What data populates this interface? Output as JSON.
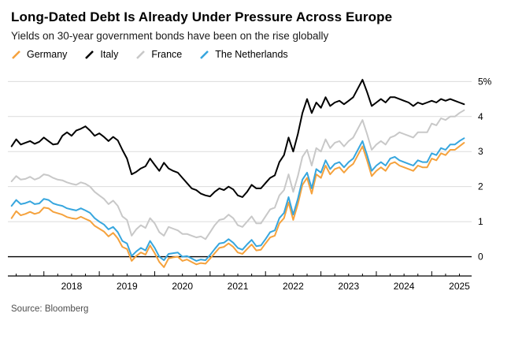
{
  "chart_data": {
    "type": "line",
    "title": "Long-Dated Debt Is Already Under Pressure Across Europe",
    "subtitle": "Yields on 30-year government bonds have been on the rise globally",
    "source": "Source: Bloomberg",
    "legend_position": "top",
    "grid": true,
    "grid_color": "#dcdcdc",
    "zero_line_color": "#000000",
    "axis_color": "#000000",
    "x_start": 2017.4167,
    "x_step": 0.083333,
    "xlim": [
      2017.35,
      2025.72
    ],
    "ylim": [
      -0.55,
      5.3
    ],
    "y_ticks": [
      0,
      1,
      2,
      3,
      4,
      5
    ],
    "y_tick_labels": [
      "0",
      "1",
      "2",
      "3",
      "4",
      "5%"
    ],
    "x_ticks": [
      2018,
      2019,
      2020,
      2021,
      2022,
      2023,
      2024,
      2025
    ],
    "x_tick_labels": [
      "2018",
      "2019",
      "2020",
      "2021",
      "2022",
      "2023",
      "2024",
      "2025"
    ],
    "draw_order": [
      2,
      0,
      3,
      1
    ],
    "series": [
      {
        "name": "Germany",
        "color": "#f5a23d",
        "values": [
          1.1,
          1.3,
          1.18,
          1.22,
          1.28,
          1.22,
          1.26,
          1.4,
          1.38,
          1.28,
          1.24,
          1.2,
          1.13,
          1.1,
          1.08,
          1.14,
          1.08,
          1.02,
          0.88,
          0.8,
          0.72,
          0.58,
          0.68,
          0.52,
          0.28,
          0.22,
          -0.12,
          0.02,
          0.12,
          0.06,
          0.32,
          0.1,
          -0.15,
          -0.3,
          -0.05,
          -0.02,
          0.0,
          -0.12,
          -0.08,
          -0.15,
          -0.22,
          -0.18,
          -0.2,
          -0.05,
          0.1,
          0.25,
          0.28,
          0.38,
          0.28,
          0.12,
          0.08,
          0.22,
          0.35,
          0.18,
          0.2,
          0.38,
          0.55,
          0.6,
          0.95,
          1.1,
          1.55,
          1.05,
          1.5,
          2.05,
          2.25,
          1.8,
          2.35,
          2.25,
          2.6,
          2.35,
          2.5,
          2.55,
          2.4,
          2.55,
          2.65,
          2.9,
          3.15,
          2.75,
          2.3,
          2.45,
          2.55,
          2.45,
          2.65,
          2.7,
          2.6,
          2.55,
          2.5,
          2.45,
          2.6,
          2.55,
          2.55,
          2.8,
          2.75,
          2.95,
          2.9,
          3.05,
          3.05,
          3.15,
          3.25
        ]
      },
      {
        "name": "Italy",
        "color": "#000000",
        "values": [
          3.15,
          3.35,
          3.2,
          3.25,
          3.3,
          3.22,
          3.28,
          3.4,
          3.3,
          3.2,
          3.22,
          3.45,
          3.55,
          3.45,
          3.6,
          3.65,
          3.72,
          3.6,
          3.45,
          3.52,
          3.42,
          3.3,
          3.42,
          3.32,
          3.05,
          2.8,
          2.35,
          2.42,
          2.52,
          2.58,
          2.8,
          2.62,
          2.45,
          2.68,
          2.52,
          2.45,
          2.4,
          2.25,
          2.1,
          1.95,
          1.9,
          1.8,
          1.75,
          1.72,
          1.85,
          1.95,
          1.9,
          2.0,
          1.92,
          1.75,
          1.7,
          1.85,
          2.05,
          1.95,
          1.95,
          2.1,
          2.25,
          2.32,
          2.7,
          2.9,
          3.4,
          3.0,
          3.5,
          4.1,
          4.5,
          4.1,
          4.4,
          4.25,
          4.55,
          4.3,
          4.4,
          4.45,
          4.35,
          4.45,
          4.55,
          4.8,
          5.05,
          4.7,
          4.3,
          4.4,
          4.5,
          4.4,
          4.55,
          4.55,
          4.5,
          4.45,
          4.4,
          4.3,
          4.4,
          4.35,
          4.4,
          4.45,
          4.4,
          4.5,
          4.45,
          4.5,
          4.45,
          4.4,
          4.35
        ]
      },
      {
        "name": "France",
        "color": "#c8c8c8",
        "values": [
          2.15,
          2.3,
          2.2,
          2.22,
          2.28,
          2.2,
          2.25,
          2.35,
          2.32,
          2.25,
          2.2,
          2.18,
          2.12,
          2.08,
          2.05,
          2.12,
          2.08,
          2.0,
          1.85,
          1.75,
          1.65,
          1.5,
          1.6,
          1.45,
          1.15,
          1.05,
          0.6,
          0.78,
          0.9,
          0.82,
          1.1,
          0.95,
          0.7,
          0.6,
          0.85,
          0.8,
          0.75,
          0.65,
          0.65,
          0.6,
          0.55,
          0.58,
          0.5,
          0.7,
          0.9,
          1.05,
          1.08,
          1.2,
          1.1,
          0.9,
          0.85,
          1.0,
          1.15,
          0.95,
          0.95,
          1.15,
          1.35,
          1.4,
          1.75,
          1.9,
          2.35,
          1.85,
          2.3,
          2.85,
          3.05,
          2.6,
          3.1,
          3.0,
          3.35,
          3.1,
          3.25,
          3.3,
          3.15,
          3.3,
          3.4,
          3.65,
          3.9,
          3.5,
          3.05,
          3.2,
          3.3,
          3.2,
          3.4,
          3.45,
          3.55,
          3.5,
          3.45,
          3.4,
          3.55,
          3.55,
          3.55,
          3.8,
          3.75,
          3.95,
          3.9,
          4.0,
          4.0,
          4.1,
          4.18
        ]
      },
      {
        "name": "The Netherlands",
        "color": "#37a6de",
        "values": [
          1.45,
          1.62,
          1.5,
          1.53,
          1.58,
          1.5,
          1.52,
          1.65,
          1.62,
          1.52,
          1.48,
          1.45,
          1.38,
          1.35,
          1.32,
          1.38,
          1.32,
          1.25,
          1.1,
          1.0,
          0.92,
          0.78,
          0.85,
          0.7,
          0.45,
          0.38,
          0.02,
          0.15,
          0.25,
          0.18,
          0.45,
          0.25,
          0.0,
          -0.1,
          0.08,
          0.1,
          0.12,
          0.0,
          0.02,
          -0.05,
          -0.12,
          -0.08,
          -0.1,
          0.05,
          0.22,
          0.38,
          0.4,
          0.5,
          0.4,
          0.25,
          0.2,
          0.35,
          0.48,
          0.3,
          0.32,
          0.5,
          0.7,
          0.75,
          1.1,
          1.25,
          1.7,
          1.2,
          1.65,
          2.2,
          2.4,
          1.95,
          2.5,
          2.4,
          2.75,
          2.5,
          2.65,
          2.7,
          2.55,
          2.7,
          2.8,
          3.05,
          3.3,
          2.9,
          2.45,
          2.6,
          2.7,
          2.6,
          2.8,
          2.85,
          2.75,
          2.7,
          2.65,
          2.6,
          2.75,
          2.7,
          2.7,
          2.95,
          2.9,
          3.1,
          3.05,
          3.2,
          3.2,
          3.3,
          3.38
        ]
      }
    ]
  }
}
